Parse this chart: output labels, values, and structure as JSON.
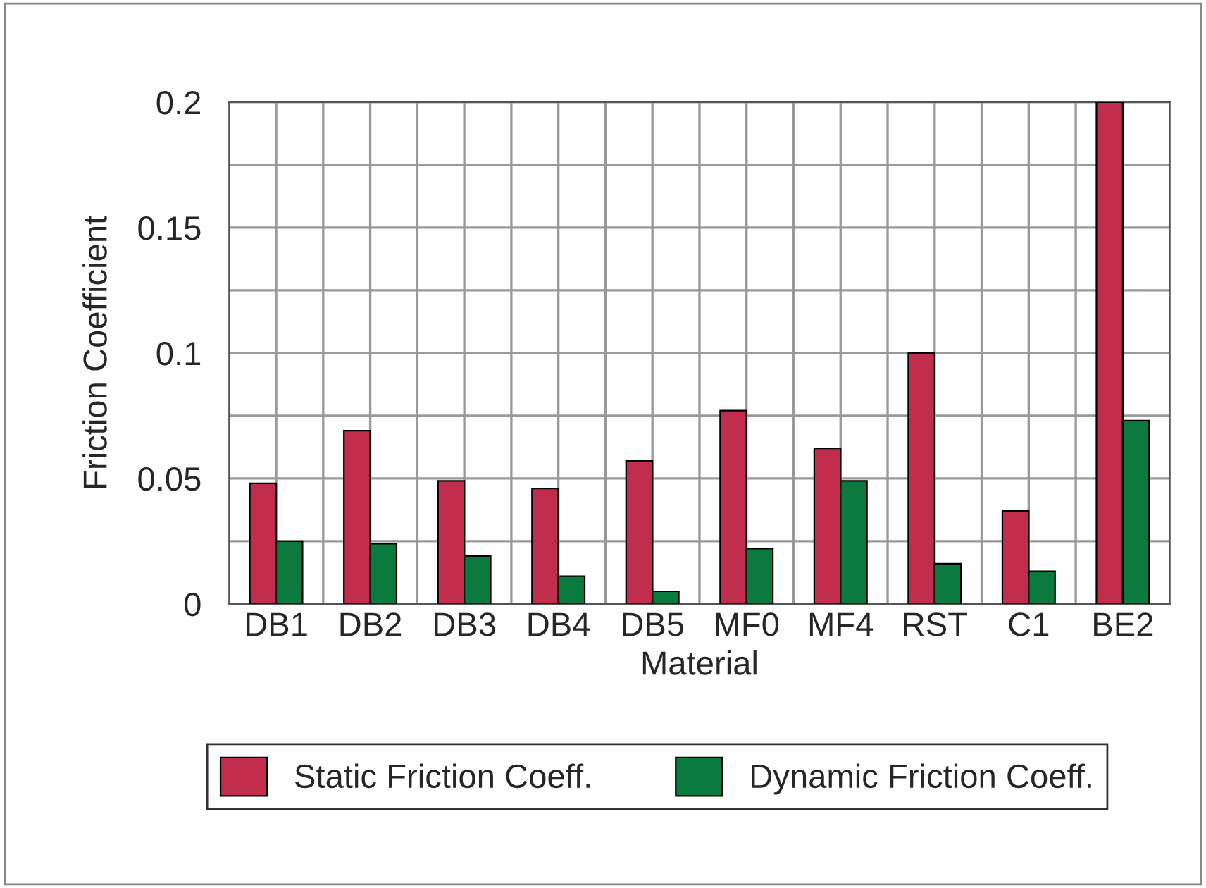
{
  "chart_data": {
    "type": "bar",
    "xlabel": "Material",
    "ylabel": "Friction Coefficient",
    "categories": [
      "DB1",
      "DB2",
      "DB3",
      "DB4",
      "DB5",
      "MF0",
      "MF4",
      "RST",
      "C1",
      "BE2"
    ],
    "series": [
      {
        "name": "Static Friction Coeff.",
        "color": "#c12d4d",
        "values": [
          0.048,
          0.069,
          0.049,
          0.046,
          0.057,
          0.077,
          0.062,
          0.1,
          0.037,
          0.2
        ]
      },
      {
        "name": "Dynamic Friction Coeff.",
        "color": "#0b7a3e",
        "values": [
          0.025,
          0.024,
          0.019,
          0.011,
          0.005,
          0.022,
          0.049,
          0.016,
          0.013,
          0.073
        ]
      }
    ],
    "ylim": [
      0,
      0.2
    ],
    "yticks": [
      0,
      {
        "value": 0.025,
        "label": null
      },
      0.05,
      {
        "value": 0.075,
        "label": null
      },
      0.1,
      {
        "value": 0.125,
        "label": null
      },
      0.15,
      {
        "value": 0.175,
        "label": null
      },
      0.2
    ],
    "grid": true,
    "legend": "bottom"
  }
}
